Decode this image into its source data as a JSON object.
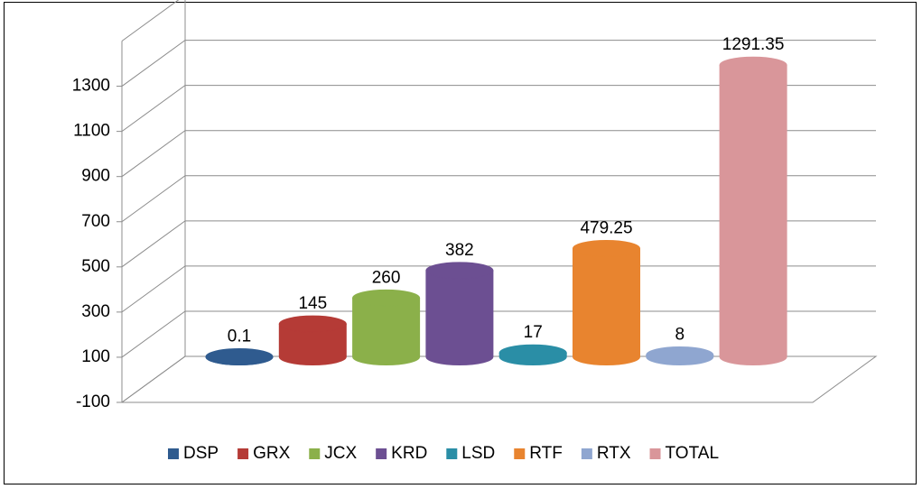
{
  "chart_data": {
    "type": "cylinder3d",
    "series": [
      {
        "name": "DSP",
        "color": "#2f5b8f",
        "values": [
          0.1
        ]
      },
      {
        "name": "GRX",
        "color": "#b53b36",
        "values": [
          145
        ]
      },
      {
        "name": "JCX",
        "color": "#8bb04a",
        "values": [
          260
        ]
      },
      {
        "name": "KRD",
        "color": "#6c4f92",
        "values": [
          382
        ]
      },
      {
        "name": "LSD",
        "color": "#2a8ea6",
        "values": [
          17
        ]
      },
      {
        "name": "RTF",
        "color": "#e8842f",
        "values": [
          479.25
        ]
      },
      {
        "name": "RTX",
        "color": "#8fa6d0",
        "values": [
          8
        ]
      },
      {
        "name": "TOTAL",
        "color": "#d9969a",
        "values": [
          1291.35
        ]
      }
    ],
    "ylim": [
      -100,
      1500
    ],
    "yticks": [
      -100,
      100,
      300,
      500,
      700,
      900,
      1100,
      1300
    ],
    "grid": true,
    "legend": "bottom"
  }
}
